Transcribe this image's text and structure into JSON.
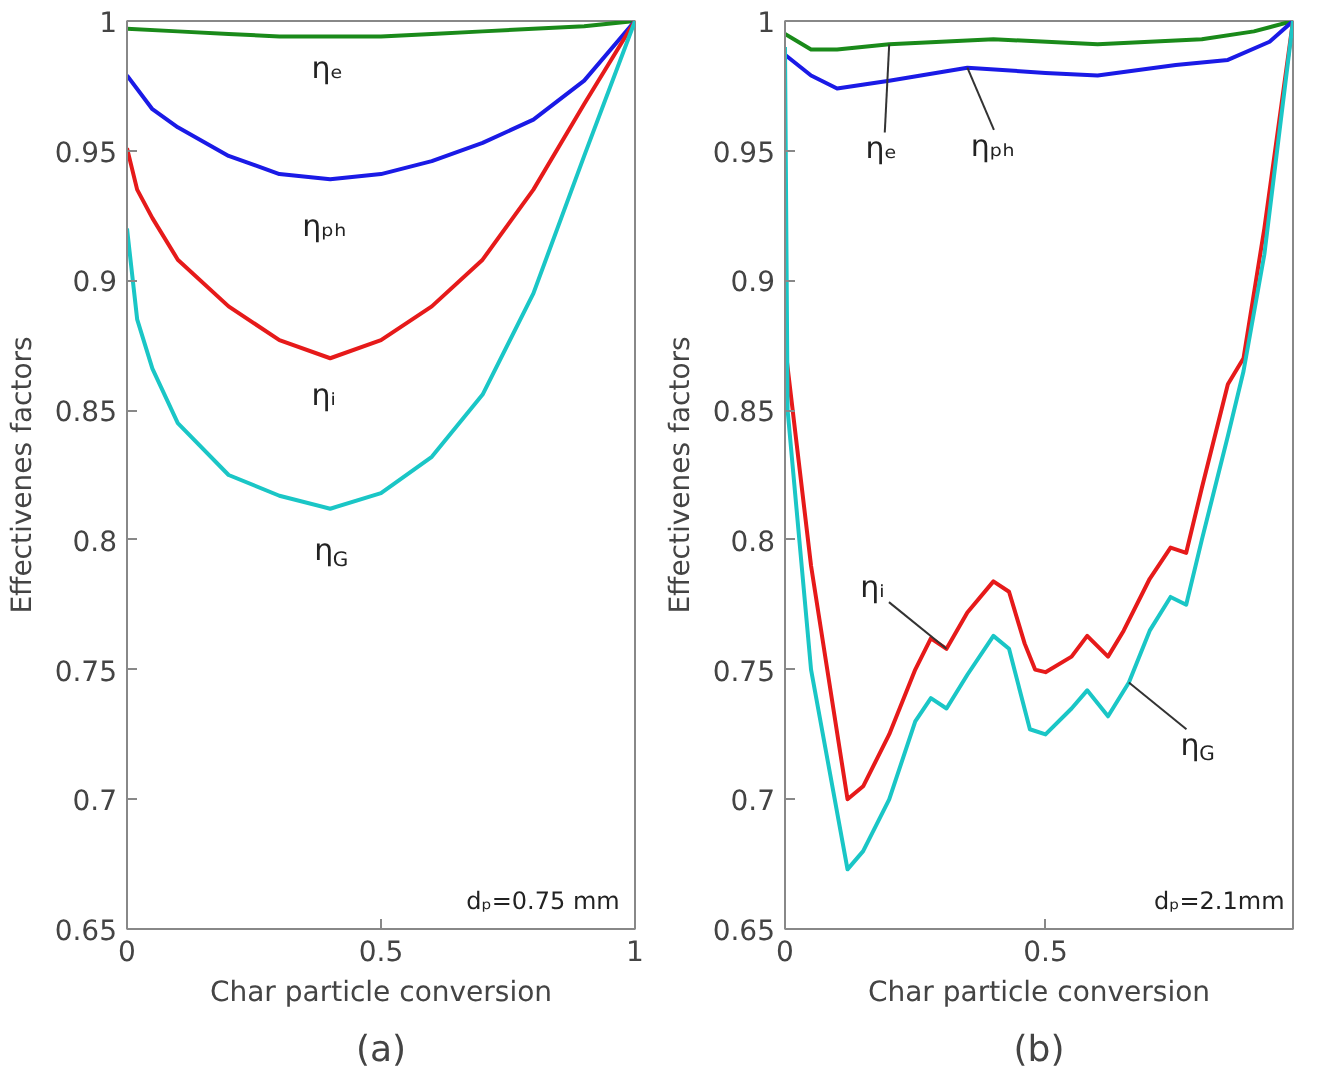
{
  "chart_data": [
    {
      "type": "line",
      "title": "(a)",
      "xlabel": "Char particle conversion",
      "ylabel": "Effectivenes factors",
      "xlim": [
        0,
        1
      ],
      "ylim": [
        0.65,
        1
      ],
      "xticks": [
        0,
        0.5,
        1
      ],
      "yticks": [
        0.65,
        0.7,
        0.75,
        0.8,
        0.85,
        0.9,
        0.95,
        1
      ],
      "grid": false,
      "series": [
        {
          "name": "ηₑ",
          "color": "#1a8a1a",
          "x": [
            0,
            0.1,
            0.2,
            0.3,
            0.4,
            0.5,
            0.6,
            0.7,
            0.8,
            0.9,
            1
          ],
          "values": [
            0.997,
            0.996,
            0.995,
            0.994,
            0.994,
            0.994,
            0.995,
            0.996,
            0.997,
            0.998,
            1
          ]
        },
        {
          "name": "ηₚₕ",
          "color": "#1a1ae6",
          "x": [
            0,
            0.05,
            0.1,
            0.2,
            0.3,
            0.4,
            0.5,
            0.6,
            0.7,
            0.8,
            0.9,
            1
          ],
          "values": [
            0.979,
            0.966,
            0.959,
            0.948,
            0.941,
            0.939,
            0.941,
            0.946,
            0.953,
            0.962,
            0.977,
            1
          ]
        },
        {
          "name": "ηᵢ",
          "color": "#e61a1a",
          "x": [
            0,
            0.02,
            0.05,
            0.1,
            0.2,
            0.3,
            0.4,
            0.5,
            0.6,
            0.7,
            0.8,
            0.9,
            1
          ],
          "values": [
            0.951,
            0.935,
            0.924,
            0.908,
            0.89,
            0.877,
            0.87,
            0.877,
            0.89,
            0.908,
            0.935,
            0.968,
            1
          ]
        },
        {
          "name": "η$_{G}$",
          "color": "#1ac6c6",
          "x": [
            0,
            0.02,
            0.05,
            0.1,
            0.2,
            0.3,
            0.4,
            0.5,
            0.6,
            0.7,
            0.8,
            0.9,
            1
          ],
          "values": [
            0.92,
            0.885,
            0.866,
            0.845,
            0.825,
            0.817,
            0.812,
            0.818,
            0.832,
            0.856,
            0.895,
            0.948,
            1
          ]
        }
      ],
      "annotations": [
        "dₚ=0.75 mm"
      ]
    },
    {
      "type": "line",
      "title": "(b)",
      "xlabel": "Char particle conversion",
      "ylabel": "Effectivenes factors",
      "xlim": [
        0,
        0.975
      ],
      "ylim": [
        0.65,
        1
      ],
      "xticks": [
        0,
        0.5
      ],
      "yticks": [
        0.65,
        0.7,
        0.75,
        0.8,
        0.85,
        0.9,
        0.95,
        1
      ],
      "grid": false,
      "series": [
        {
          "name": "ηₑ",
          "color": "#1a8a1a",
          "x": [
            0,
            0.05,
            0.1,
            0.2,
            0.4,
            0.6,
            0.8,
            0.9,
            0.975
          ],
          "values": [
            0.995,
            0.989,
            0.989,
            0.991,
            0.993,
            0.991,
            0.993,
            0.996,
            1
          ]
        },
        {
          "name": "ηₚₕ",
          "color": "#1a1ae6",
          "x": [
            0,
            0.05,
            0.1,
            0.2,
            0.35,
            0.5,
            0.6,
            0.75,
            0.85,
            0.93,
            0.975
          ],
          "values": [
            0.987,
            0.979,
            0.974,
            0.977,
            0.982,
            0.98,
            0.979,
            0.983,
            0.985,
            0.992,
            1
          ]
        },
        {
          "name": "ηᵢ",
          "color": "#e61a1a",
          "x": [
            0,
            0.05,
            0.12,
            0.15,
            0.2,
            0.25,
            0.28,
            0.31,
            0.35,
            0.4,
            0.43,
            0.46,
            0.48,
            0.5,
            0.55,
            0.58,
            0.62,
            0.65,
            0.7,
            0.74,
            0.77,
            0.8,
            0.85,
            0.88,
            0.92,
            0.975
          ],
          "values": [
            0.875,
            0.79,
            0.7,
            0.705,
            0.725,
            0.75,
            0.762,
            0.758,
            0.772,
            0.784,
            0.78,
            0.76,
            0.75,
            0.749,
            0.755,
            0.763,
            0.755,
            0.765,
            0.785,
            0.797,
            0.795,
            0.82,
            0.86,
            0.87,
            0.92,
            1
          ]
        },
        {
          "name": "η$_{G}$",
          "color": "#1ac6c6",
          "x": [
            0,
            0.005,
            0.05,
            0.12,
            0.15,
            0.2,
            0.25,
            0.28,
            0.31,
            0.35,
            0.4,
            0.43,
            0.47,
            0.5,
            0.55,
            0.58,
            0.62,
            0.66,
            0.7,
            0.74,
            0.77,
            0.8,
            0.85,
            0.88,
            0.92,
            0.975
          ],
          "values": [
            0.99,
            0.85,
            0.75,
            0.673,
            0.68,
            0.7,
            0.73,
            0.739,
            0.735,
            0.748,
            0.763,
            0.758,
            0.727,
            0.725,
            0.735,
            0.742,
            0.732,
            0.745,
            0.765,
            0.778,
            0.775,
            0.8,
            0.84,
            0.865,
            0.91,
            1
          ]
        }
      ],
      "annotations": [
        "dₚ=2.1mm"
      ]
    }
  ]
}
